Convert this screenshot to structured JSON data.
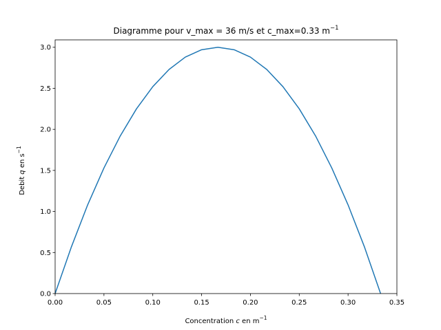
{
  "chart_data": {
    "type": "line",
    "title": {
      "prefix": "Diagramme pour v_max",
      "eq1": " = ",
      "vmax": "36 m/s et c_max=0.33 m",
      "sup": "−1"
    },
    "xlabel": {
      "before": "Concentration ",
      "var": "c",
      "after": " en m",
      "sup": "−1"
    },
    "ylabel": {
      "before": "Debit ",
      "var": "q",
      "after": " en s",
      "sup": "−1"
    },
    "xlim": [
      0,
      0.35
    ],
    "ylim": [
      0,
      3.09
    ],
    "xticks": [
      0.0,
      0.05,
      0.1,
      0.15,
      0.2,
      0.25,
      0.3,
      0.35
    ],
    "xtick_labels": [
      "0.00",
      "0.05",
      "0.10",
      "0.15",
      "0.20",
      "0.25",
      "0.30",
      "0.35"
    ],
    "yticks": [
      0.0,
      0.5,
      1.0,
      1.5,
      2.0,
      2.5,
      3.0
    ],
    "ytick_labels": [
      "0.0",
      "0.5",
      "1.0",
      "1.5",
      "2.0",
      "2.5",
      "3.0"
    ],
    "grid": false,
    "series": [
      {
        "color": "#1f77b4",
        "x": [
          0.0,
          0.0167,
          0.0333,
          0.05,
          0.0667,
          0.0833,
          0.1,
          0.1167,
          0.1333,
          0.15,
          0.1667,
          0.1833,
          0.2,
          0.2167,
          0.2333,
          0.25,
          0.2667,
          0.2833,
          0.3,
          0.3167,
          0.3333
        ],
        "y": [
          0.0,
          0.57,
          1.08,
          1.53,
          1.92,
          2.25,
          2.52,
          2.73,
          2.88,
          2.97,
          3.0,
          2.97,
          2.88,
          2.73,
          2.52,
          2.25,
          1.92,
          1.53,
          1.08,
          0.57,
          0.0
        ]
      }
    ]
  }
}
